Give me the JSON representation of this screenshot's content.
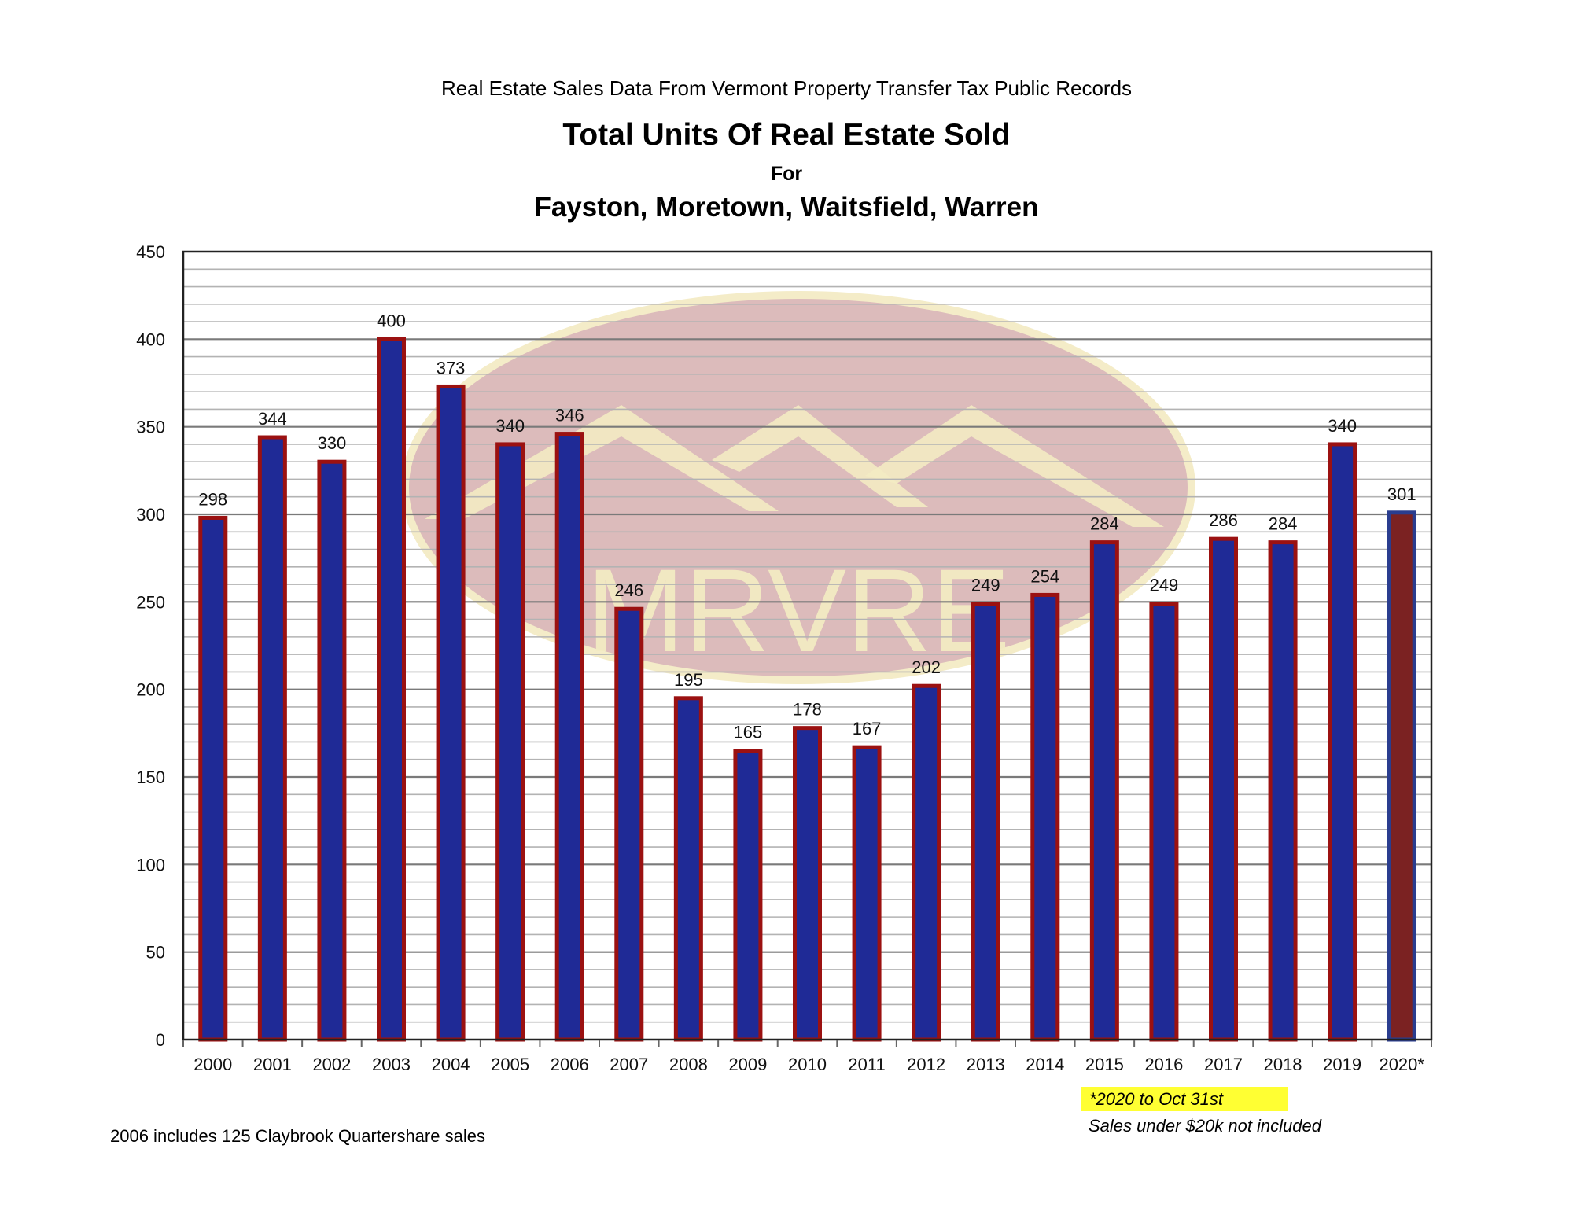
{
  "header": {
    "subtitle": "Real Estate Sales Data From Vermont Property Transfer Tax Public Records",
    "title": "Total Units Of Real Estate Sold",
    "for_line": "For",
    "title_line2": "Fayston, Moretown, Waitsfield, Warren"
  },
  "watermark": {
    "text": "MRVRE"
  },
  "notes": {
    "left": "2006 includes 125 Claybrook Quartershare sales",
    "highlight": "*2020 to Oct 31st",
    "sales": "Sales under $20k not included"
  },
  "colors": {
    "bar_fill": "#1f2a96",
    "bar_border": "#9b1111",
    "last_bar_fill": "#7b2222",
    "last_bar_border": "#2a3d8f",
    "highlight": "#ffff33"
  },
  "chart_data": {
    "type": "bar",
    "categories": [
      "2000",
      "2001",
      "2002",
      "2003",
      "2004",
      "2005",
      "2006",
      "2007",
      "2008",
      "2009",
      "2010",
      "2011",
      "2012",
      "2013",
      "2014",
      "2015",
      "2016",
      "2017",
      "2018",
      "2019",
      "2020*"
    ],
    "values": [
      298,
      344,
      330,
      400,
      373,
      340,
      346,
      246,
      195,
      165,
      178,
      167,
      202,
      249,
      254,
      284,
      249,
      286,
      284,
      340,
      301
    ],
    "data_labels": [
      "298",
      "344",
      "330",
      "400",
      "373",
      "340",
      "346",
      "246",
      "195",
      "165",
      "178",
      "167",
      "202",
      "249",
      "254",
      "284",
      "249",
      "286",
      "284",
      "340",
      "301"
    ],
    "ylim": [
      0,
      450
    ],
    "y_ticks": [
      0,
      50,
      100,
      150,
      200,
      250,
      300,
      350,
      400,
      450
    ],
    "y_minor_step": 10,
    "grid": true,
    "title": "Total Units Of Real Estate Sold",
    "xlabel": "",
    "ylabel": ""
  }
}
